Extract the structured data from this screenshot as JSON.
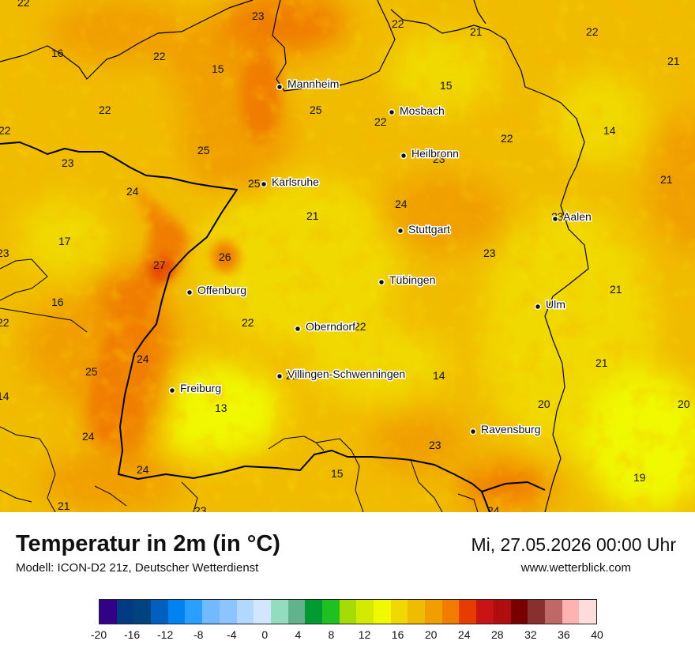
{
  "header": {
    "title": "Temperatur in 2m (in °C)",
    "subtitle": "Modell: ICON-D2 21z, Deutscher Wetterdienst",
    "datetime": "Mi, 27.05.2026 00:00 Uhr",
    "website": "www.wetterblick.com"
  },
  "map": {
    "cities": [
      {
        "name": "Mannheim"
      },
      {
        "name": "Mosbach"
      },
      {
        "name": "Heilbronn"
      },
      {
        "name": "Karlsruhe"
      },
      {
        "name": "Stuttgart"
      },
      {
        "name": "Aalen"
      },
      {
        "name": "Tübingen"
      },
      {
        "name": "Offenburg"
      },
      {
        "name": "Oberndorf"
      },
      {
        "name": "Ulm"
      },
      {
        "name": "Villingen-Schwenningen"
      },
      {
        "name": "Freiburg"
      },
      {
        "name": "Ravensburg"
      }
    ],
    "temperature_labels": [
      "22",
      "23",
      "22",
      "21",
      "22",
      "16",
      "22",
      "15",
      "21",
      "15",
      "25",
      "22",
      "22",
      "14",
      "22",
      "22",
      "25",
      "23",
      "23",
      "24",
      "25",
      "21",
      "24",
      "21",
      "17",
      "23",
      "27",
      "26",
      "23",
      "23",
      "21",
      "16",
      "22",
      "22",
      "22",
      "24",
      "25",
      "21",
      "14",
      "21",
      "14",
      "13",
      "20",
      "20",
      "24",
      "23",
      "24",
      "15",
      "19",
      "21",
      "23",
      "24"
    ]
  },
  "legend": {
    "colors": [
      "#330088",
      "#003a80",
      "#00437f",
      "#005fbf",
      "#0082f0",
      "#29a0ff",
      "#72b9ff",
      "#8cc4ff",
      "#b1d8ff",
      "#d3e6ff",
      "#94dcc0",
      "#60b38c",
      "#009a32",
      "#20c020",
      "#a6dc06",
      "#d2eb00",
      "#f0f900",
      "#f0d900",
      "#f0bc00",
      "#f09e00",
      "#f07d00",
      "#e63c00",
      "#c81414",
      "#b00e0e",
      "#780000",
      "#883030",
      "#c06868",
      "#ffb2b2",
      "#ffdcdc"
    ],
    "ticks": [
      "-20",
      "-16",
      "-12",
      "-8",
      "-4",
      "0",
      "4",
      "8",
      "12",
      "16",
      "20",
      "24",
      "28",
      "32",
      "36",
      "40"
    ]
  }
}
